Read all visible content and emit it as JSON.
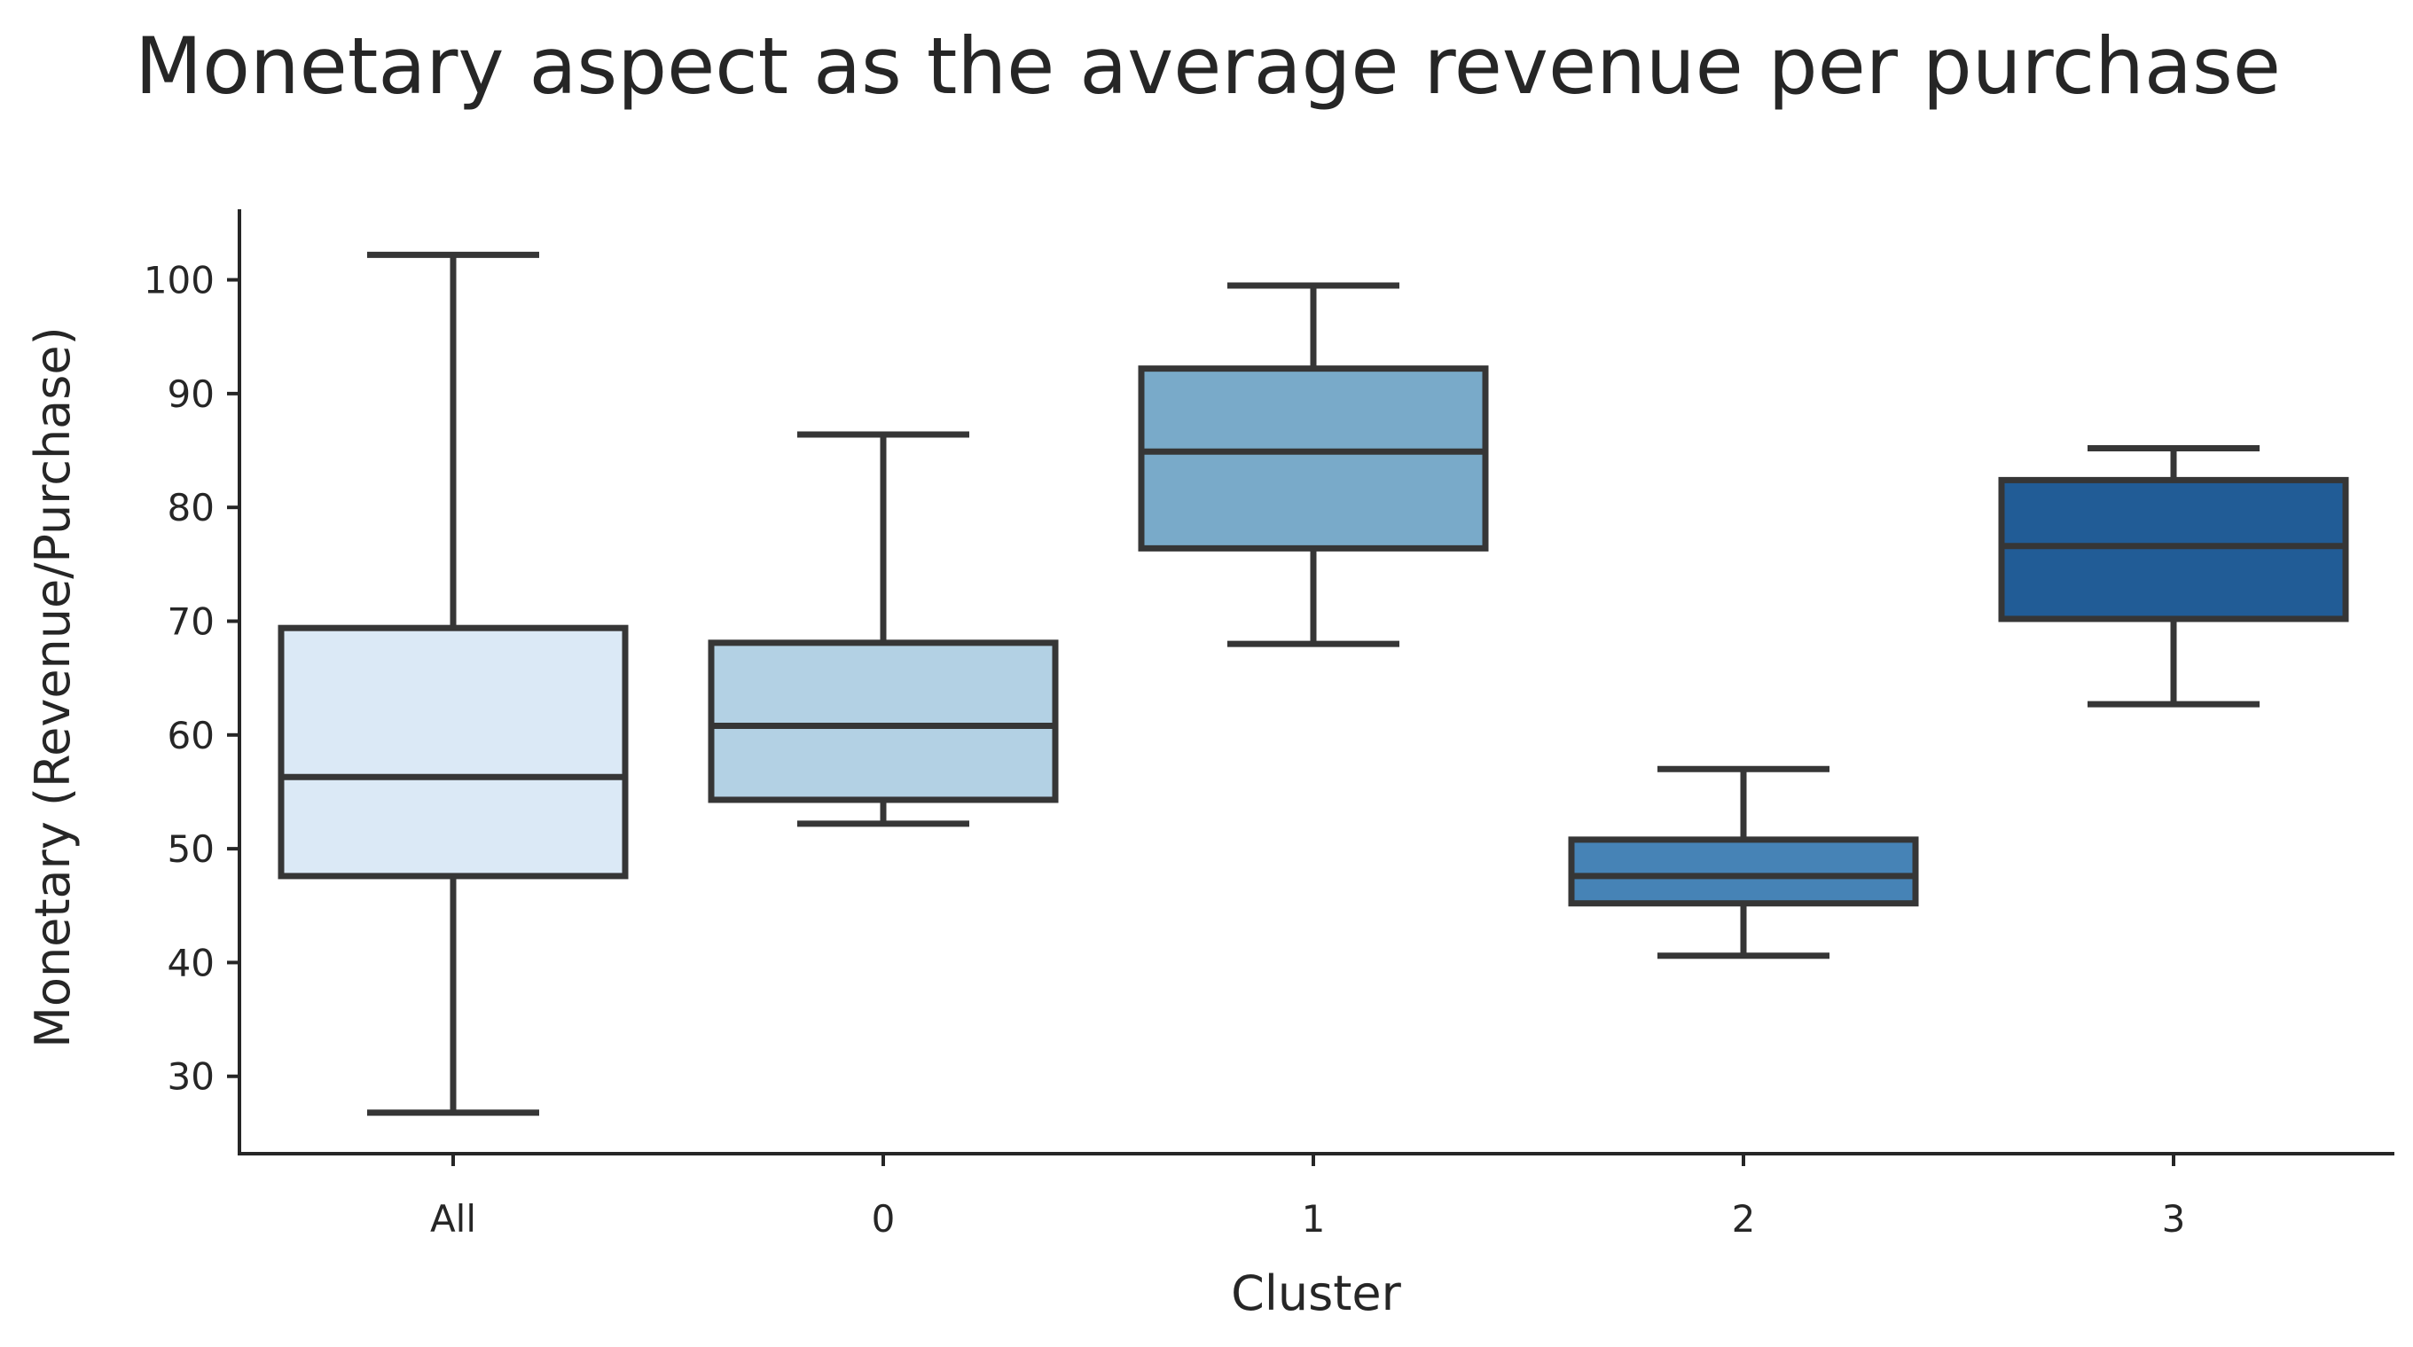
{
  "chart_data": {
    "type": "boxplot",
    "title": "Monetary aspect as the average revenue per purchase",
    "xlabel": "Cluster",
    "ylabel": "Monetary (Revenue/Purchase)",
    "categories": [
      "All",
      "0",
      "1",
      "2",
      "3"
    ],
    "ylim": [
      23.2,
      106.2
    ],
    "yticks": [
      30,
      40,
      50,
      60,
      70,
      80,
      90,
      100
    ],
    "grid": false,
    "series": [
      {
        "name": "All",
        "whisker_low": 26.8,
        "q1": 47.6,
        "median": 56.3,
        "q3": 69.4,
        "whisker_high": 102.2,
        "color": "#dbe9f6"
      },
      {
        "name": "0",
        "whisker_low": 52.2,
        "q1": 54.3,
        "median": 60.8,
        "q3": 68.1,
        "whisker_high": 86.4,
        "color": "#b3d1e4"
      },
      {
        "name": "1",
        "whisker_low": 68.0,
        "q1": 76.4,
        "median": 84.9,
        "q3": 92.2,
        "whisker_high": 99.5,
        "color": "#79aac9"
      },
      {
        "name": "2",
        "whisker_low": 40.6,
        "q1": 45.2,
        "median": 47.6,
        "q3": 50.8,
        "whisker_high": 57.0,
        "color": "#4683b6"
      },
      {
        "name": "3",
        "whisker_low": 62.7,
        "q1": 70.2,
        "median": 76.6,
        "q3": 82.4,
        "whisker_high": 85.2,
        "color": "#215c96"
      }
    ]
  }
}
